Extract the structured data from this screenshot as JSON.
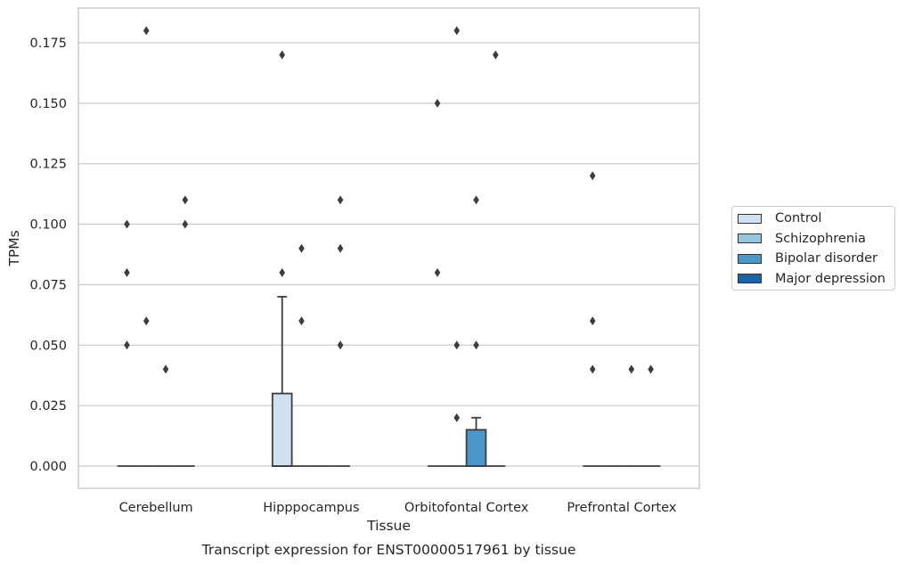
{
  "chart_data": {
    "type": "box",
    "title": "",
    "caption": "Transcript expression for ENST00000517961 by tissue",
    "xlabel": "Tissue",
    "ylabel": "TPMs",
    "ylim": [
      -0.009,
      0.1885
    ],
    "yticks": [
      0.0,
      0.025,
      0.05,
      0.075,
      0.1,
      0.125,
      0.15,
      0.175
    ],
    "ytick_labels": [
      "0.000",
      "0.025",
      "0.050",
      "0.075",
      "0.100",
      "0.125",
      "0.150",
      "0.175"
    ],
    "grid": true,
    "legend_position": "right",
    "categories": [
      "Cerebellum",
      "Hipppocampus",
      "Orbitofontal Cortex",
      "Prefrontal Cortex"
    ],
    "series": [
      {
        "name": "Control",
        "color": "#d0e1f2",
        "boxes": [
          {
            "q1": 0,
            "median": 0,
            "q3": 0,
            "whisker_low": 0,
            "whisker_high": 0,
            "outliers": [
              0.05,
              0.08,
              0.1
            ]
          },
          {
            "q1": 0,
            "median": 0,
            "q3": 0.03,
            "whisker_low": 0,
            "whisker_high": 0.07,
            "outliers": [
              0.08,
              0.17
            ]
          },
          {
            "q1": 0,
            "median": 0,
            "q3": 0,
            "whisker_low": 0,
            "whisker_high": 0,
            "outliers": [
              0.08,
              0.15
            ]
          },
          {
            "q1": 0,
            "median": 0,
            "q3": 0,
            "whisker_low": 0,
            "whisker_high": 0,
            "outliers": [
              0.04,
              0.06,
              0.12
            ]
          }
        ]
      },
      {
        "name": "Schizophrenia",
        "color": "#94c4df",
        "boxes": [
          {
            "q1": 0,
            "median": 0,
            "q3": 0,
            "whisker_low": 0,
            "whisker_high": 0,
            "outliers": [
              0.06,
              0.18
            ]
          },
          {
            "q1": 0,
            "median": 0,
            "q3": 0,
            "whisker_low": 0,
            "whisker_high": 0,
            "outliers": [
              0.06,
              0.09
            ]
          },
          {
            "q1": 0,
            "median": 0,
            "q3": 0,
            "whisker_low": 0,
            "whisker_high": 0,
            "outliers": [
              0.02,
              0.05,
              0.18
            ]
          },
          {
            "q1": 0,
            "median": 0,
            "q3": 0,
            "whisker_low": 0,
            "whisker_high": 0,
            "outliers": []
          }
        ]
      },
      {
        "name": "Bipolar disorder",
        "color": "#4a98c9",
        "boxes": [
          {
            "q1": 0,
            "median": 0,
            "q3": 0,
            "whisker_low": 0,
            "whisker_high": 0,
            "outliers": [
              0.04
            ]
          },
          {
            "q1": 0,
            "median": 0,
            "q3": 0,
            "whisker_low": 0,
            "whisker_high": 0,
            "outliers": []
          },
          {
            "q1": 0,
            "median": 0,
            "q3": 0.015,
            "whisker_low": 0,
            "whisker_high": 0.02,
            "outliers": [
              0.05,
              0.11
            ]
          },
          {
            "q1": 0,
            "median": 0,
            "q3": 0,
            "whisker_low": 0,
            "whisker_high": 0,
            "outliers": [
              0.04
            ]
          }
        ]
      },
      {
        "name": "Major depression",
        "color": "#1764ab",
        "boxes": [
          {
            "q1": 0,
            "median": 0,
            "q3": 0,
            "whisker_low": 0,
            "whisker_high": 0,
            "outliers": [
              0.1,
              0.11
            ]
          },
          {
            "q1": 0,
            "median": 0,
            "q3": 0,
            "whisker_low": 0,
            "whisker_high": 0,
            "outliers": [
              0.05,
              0.09,
              0.11
            ]
          },
          {
            "q1": 0,
            "median": 0,
            "q3": 0,
            "whisker_low": 0,
            "whisker_high": 0,
            "outliers": [
              0.17
            ]
          },
          {
            "q1": 0,
            "median": 0,
            "q3": 0,
            "whisker_low": 0,
            "whisker_high": 0,
            "outliers": [
              0.04
            ]
          }
        ]
      }
    ]
  }
}
